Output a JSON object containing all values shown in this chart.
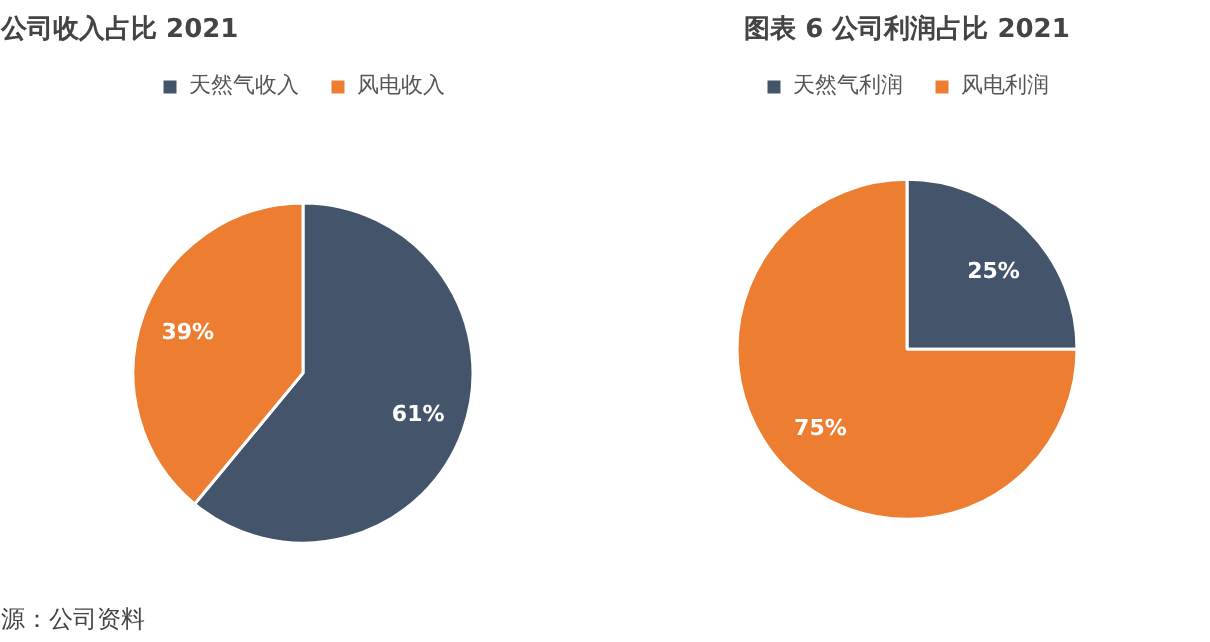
{
  "chart_data": [
    {
      "type": "pie",
      "title": "公司收入占比 2021",
      "categories": [
        "天然气收入",
        "风电收入"
      ],
      "values": [
        61,
        39
      ],
      "colors": [
        "#44546a",
        "#ed7d31"
      ],
      "value_labels": [
        "61%",
        "39%"
      ],
      "legend": "top",
      "annotations": [
        "源：公司资料"
      ]
    },
    {
      "type": "pie",
      "title": "图表 6 公司利润占比 2021",
      "categories": [
        "天然气利润",
        "风电利润"
      ],
      "values": [
        25,
        75
      ],
      "colors": [
        "#44546a",
        "#ed7d31"
      ],
      "value_labels": [
        "25%",
        "75%"
      ],
      "legend": "top"
    }
  ]
}
